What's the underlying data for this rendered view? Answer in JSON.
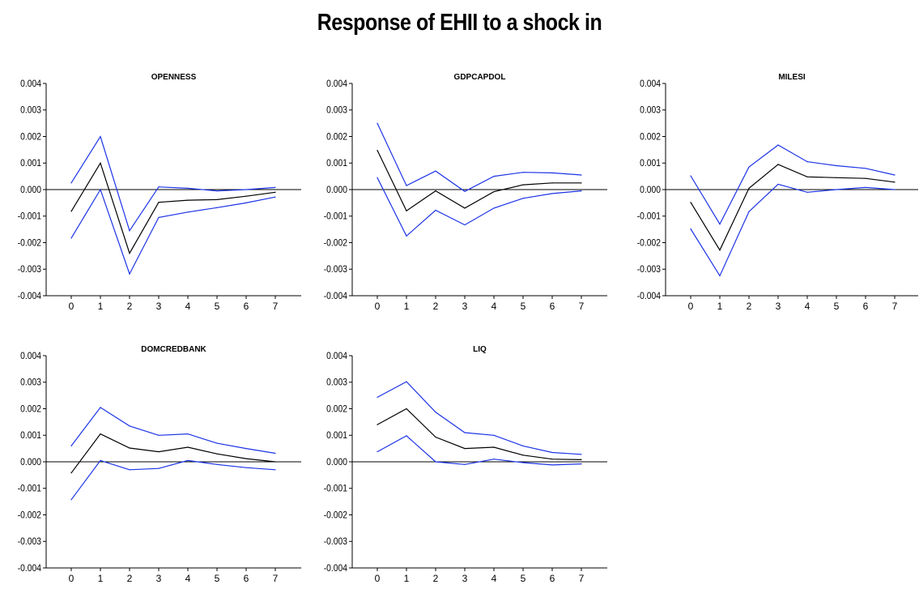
{
  "title": "Response of EHII to a shock in",
  "colors": {
    "response": "#000000",
    "bands": "#1c33e6",
    "axis": "#000000"
  },
  "chart_data": [
    {
      "type": "line",
      "title": "OPENNESS",
      "x": [
        0,
        1,
        2,
        3,
        4,
        5,
        6,
        7
      ],
      "ylim": [
        -0.004,
        0.004
      ],
      "yticks": [
        "0.004",
        "0.003",
        "0.002",
        "0.001",
        "0.000",
        "-0.001",
        "-0.002",
        "-0.003",
        "-0.004"
      ],
      "grid": false,
      "series": [
        {
          "role": "upper",
          "values": [
            0.00025,
            0.002,
            -0.00155,
            0.0001,
            5e-05,
            -5e-05,
            0.0,
            8e-05
          ]
        },
        {
          "role": "response",
          "values": [
            -0.00082,
            0.001,
            -0.0024,
            -0.00048,
            -0.0004,
            -0.00038,
            -0.00025,
            -0.0001
          ]
        },
        {
          "role": "lower",
          "values": [
            -0.00183,
            0.0,
            -0.00318,
            -0.00105,
            -0.00085,
            -0.00068,
            -0.0005,
            -0.00028
          ]
        }
      ]
    },
    {
      "type": "line",
      "title": "GDPCAPDOL",
      "x": [
        0,
        1,
        2,
        3,
        4,
        5,
        6,
        7
      ],
      "ylim": [
        -0.004,
        0.004
      ],
      "yticks": [
        "0.004",
        "0.003",
        "0.002",
        "0.001",
        "0.000",
        "-0.001",
        "-0.002",
        "-0.003",
        "-0.004"
      ],
      "grid": false,
      "series": [
        {
          "role": "upper",
          "values": [
            0.0025,
            0.00015,
            0.0007,
            -7e-05,
            0.0005,
            0.00065,
            0.00063,
            0.00055
          ]
        },
        {
          "role": "response",
          "values": [
            0.00148,
            -0.0008,
            -5e-05,
            -0.0007,
            -8e-05,
            0.00018,
            0.00025,
            0.00025
          ]
        },
        {
          "role": "lower",
          "values": [
            0.00045,
            -0.00175,
            -0.00078,
            -0.00133,
            -0.0007,
            -0.00033,
            -0.00015,
            -5e-05
          ]
        }
      ]
    },
    {
      "type": "line",
      "title": "MILESI",
      "x": [
        0,
        1,
        2,
        3,
        4,
        5,
        6,
        7
      ],
      "ylim": [
        -0.004,
        0.004
      ],
      "yticks": [
        "0.004",
        "0.003",
        "0.002",
        "0.001",
        "0.000",
        "-0.001",
        "-0.002",
        "-0.003",
        "-0.004"
      ],
      "grid": false,
      "series": [
        {
          "role": "upper",
          "values": [
            0.00052,
            -0.0013,
            0.00085,
            0.00168,
            0.00105,
            0.0009,
            0.0008,
            0.00055
          ]
        },
        {
          "role": "response",
          "values": [
            -0.00048,
            -0.00228,
            5e-05,
            0.00095,
            0.00048,
            0.00045,
            0.00042,
            0.00028
          ]
        },
        {
          "role": "lower",
          "values": [
            -0.00148,
            -0.00325,
            -0.00083,
            0.0002,
            -0.0001,
            0.0,
            8e-05,
            0.0
          ]
        }
      ]
    },
    {
      "type": "line",
      "title": "DOMCREDBANK",
      "x": [
        0,
        1,
        2,
        3,
        4,
        5,
        6,
        7
      ],
      "ylim": [
        -0.004,
        0.004
      ],
      "yticks": [
        "0.004",
        "0.003",
        "0.002",
        "0.001",
        "0.000",
        "-0.001",
        "-0.002",
        "-0.003",
        "-0.004"
      ],
      "grid": false,
      "series": [
        {
          "role": "upper",
          "values": [
            0.0006,
            0.00205,
            0.00135,
            0.001,
            0.00105,
            0.0007,
            0.0005,
            0.00032
          ]
        },
        {
          "role": "response",
          "values": [
            -0.00042,
            0.00105,
            0.00052,
            0.00038,
            0.00055,
            0.0003,
            0.00012,
            0.0
          ]
        },
        {
          "role": "lower",
          "values": [
            -0.00143,
            5e-05,
            -0.0003,
            -0.00025,
            5e-05,
            -0.0001,
            -0.00022,
            -0.0003
          ]
        }
      ]
    },
    {
      "type": "line",
      "title": "LIQ",
      "x": [
        0,
        1,
        2,
        3,
        4,
        5,
        6,
        7
      ],
      "ylim": [
        -0.004,
        0.004
      ],
      "yticks": [
        "0.004",
        "0.003",
        "0.002",
        "0.001",
        "0.000",
        "-0.001",
        "-0.002",
        "-0.003",
        "-0.004"
      ],
      "grid": false,
      "series": [
        {
          "role": "upper",
          "values": [
            0.00243,
            0.00302,
            0.00187,
            0.0011,
            0.001,
            0.0006,
            0.00035,
            0.00028
          ]
        },
        {
          "role": "response",
          "values": [
            0.0014,
            0.002,
            0.00093,
            0.0005,
            0.00055,
            0.00025,
            0.0001,
            8e-05
          ]
        },
        {
          "role": "lower",
          "values": [
            0.00038,
            0.00098,
            0.0,
            -0.0001,
            0.0001,
            -3e-05,
            -0.00012,
            -8e-05
          ]
        }
      ]
    }
  ]
}
